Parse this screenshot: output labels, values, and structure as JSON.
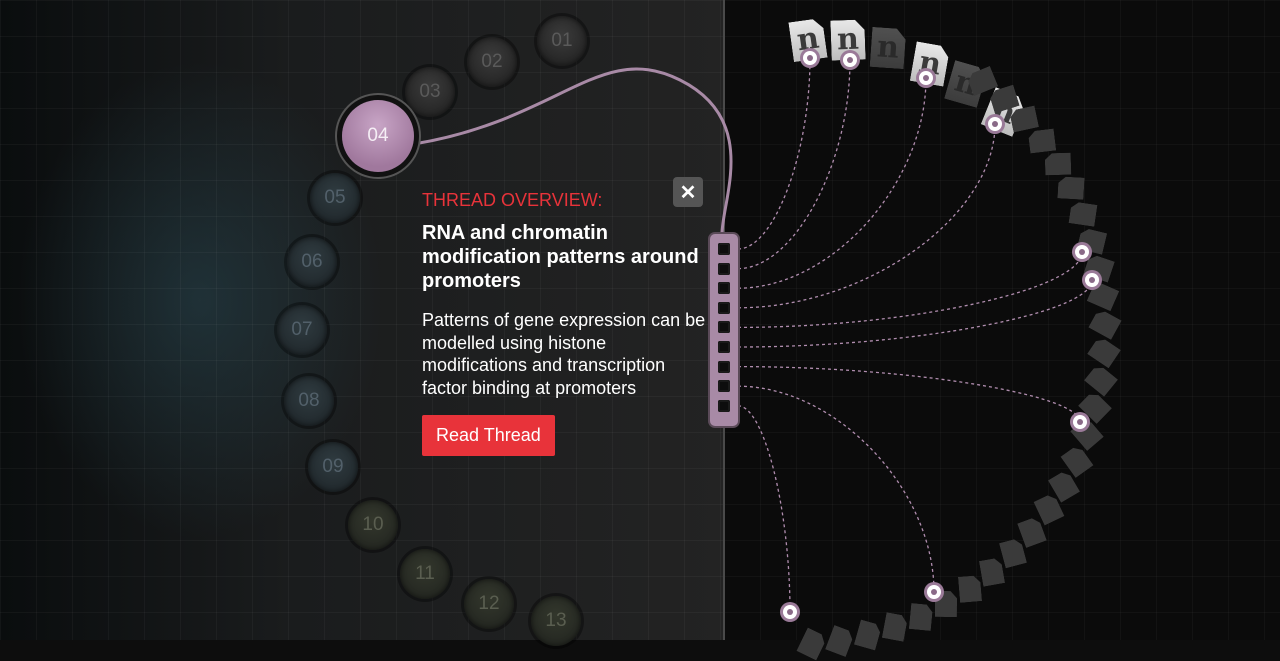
{
  "issues": [
    {
      "label": "01",
      "tint": "purple"
    },
    {
      "label": "02",
      "tint": "purple"
    },
    {
      "label": "03",
      "tint": "purple"
    },
    {
      "label": "04",
      "tint": "active"
    },
    {
      "label": "05",
      "tint": "teal"
    },
    {
      "label": "06",
      "tint": "teal"
    },
    {
      "label": "07",
      "tint": "teal"
    },
    {
      "label": "08",
      "tint": "teal"
    },
    {
      "label": "09",
      "tint": "teal"
    },
    {
      "label": "10",
      "tint": "green"
    },
    {
      "label": "11",
      "tint": "green"
    },
    {
      "label": "12",
      "tint": "green"
    },
    {
      "label": "13",
      "tint": "green"
    }
  ],
  "thread": {
    "label": "THREAD OVERVIEW:",
    "title": "RNA and chromatin modification patterns around promoters",
    "description": "Patterns of gene expression can be modelled using histone modifications and transcription factor binding at promoters",
    "read_button": "Read Thread",
    "close_icon": "close-icon",
    "close_glyph": "✕"
  },
  "paper_glyph": "n",
  "colors": {
    "accent": "#e8333a",
    "thread": "#a88aa6",
    "active_issue": "#b08dae"
  }
}
